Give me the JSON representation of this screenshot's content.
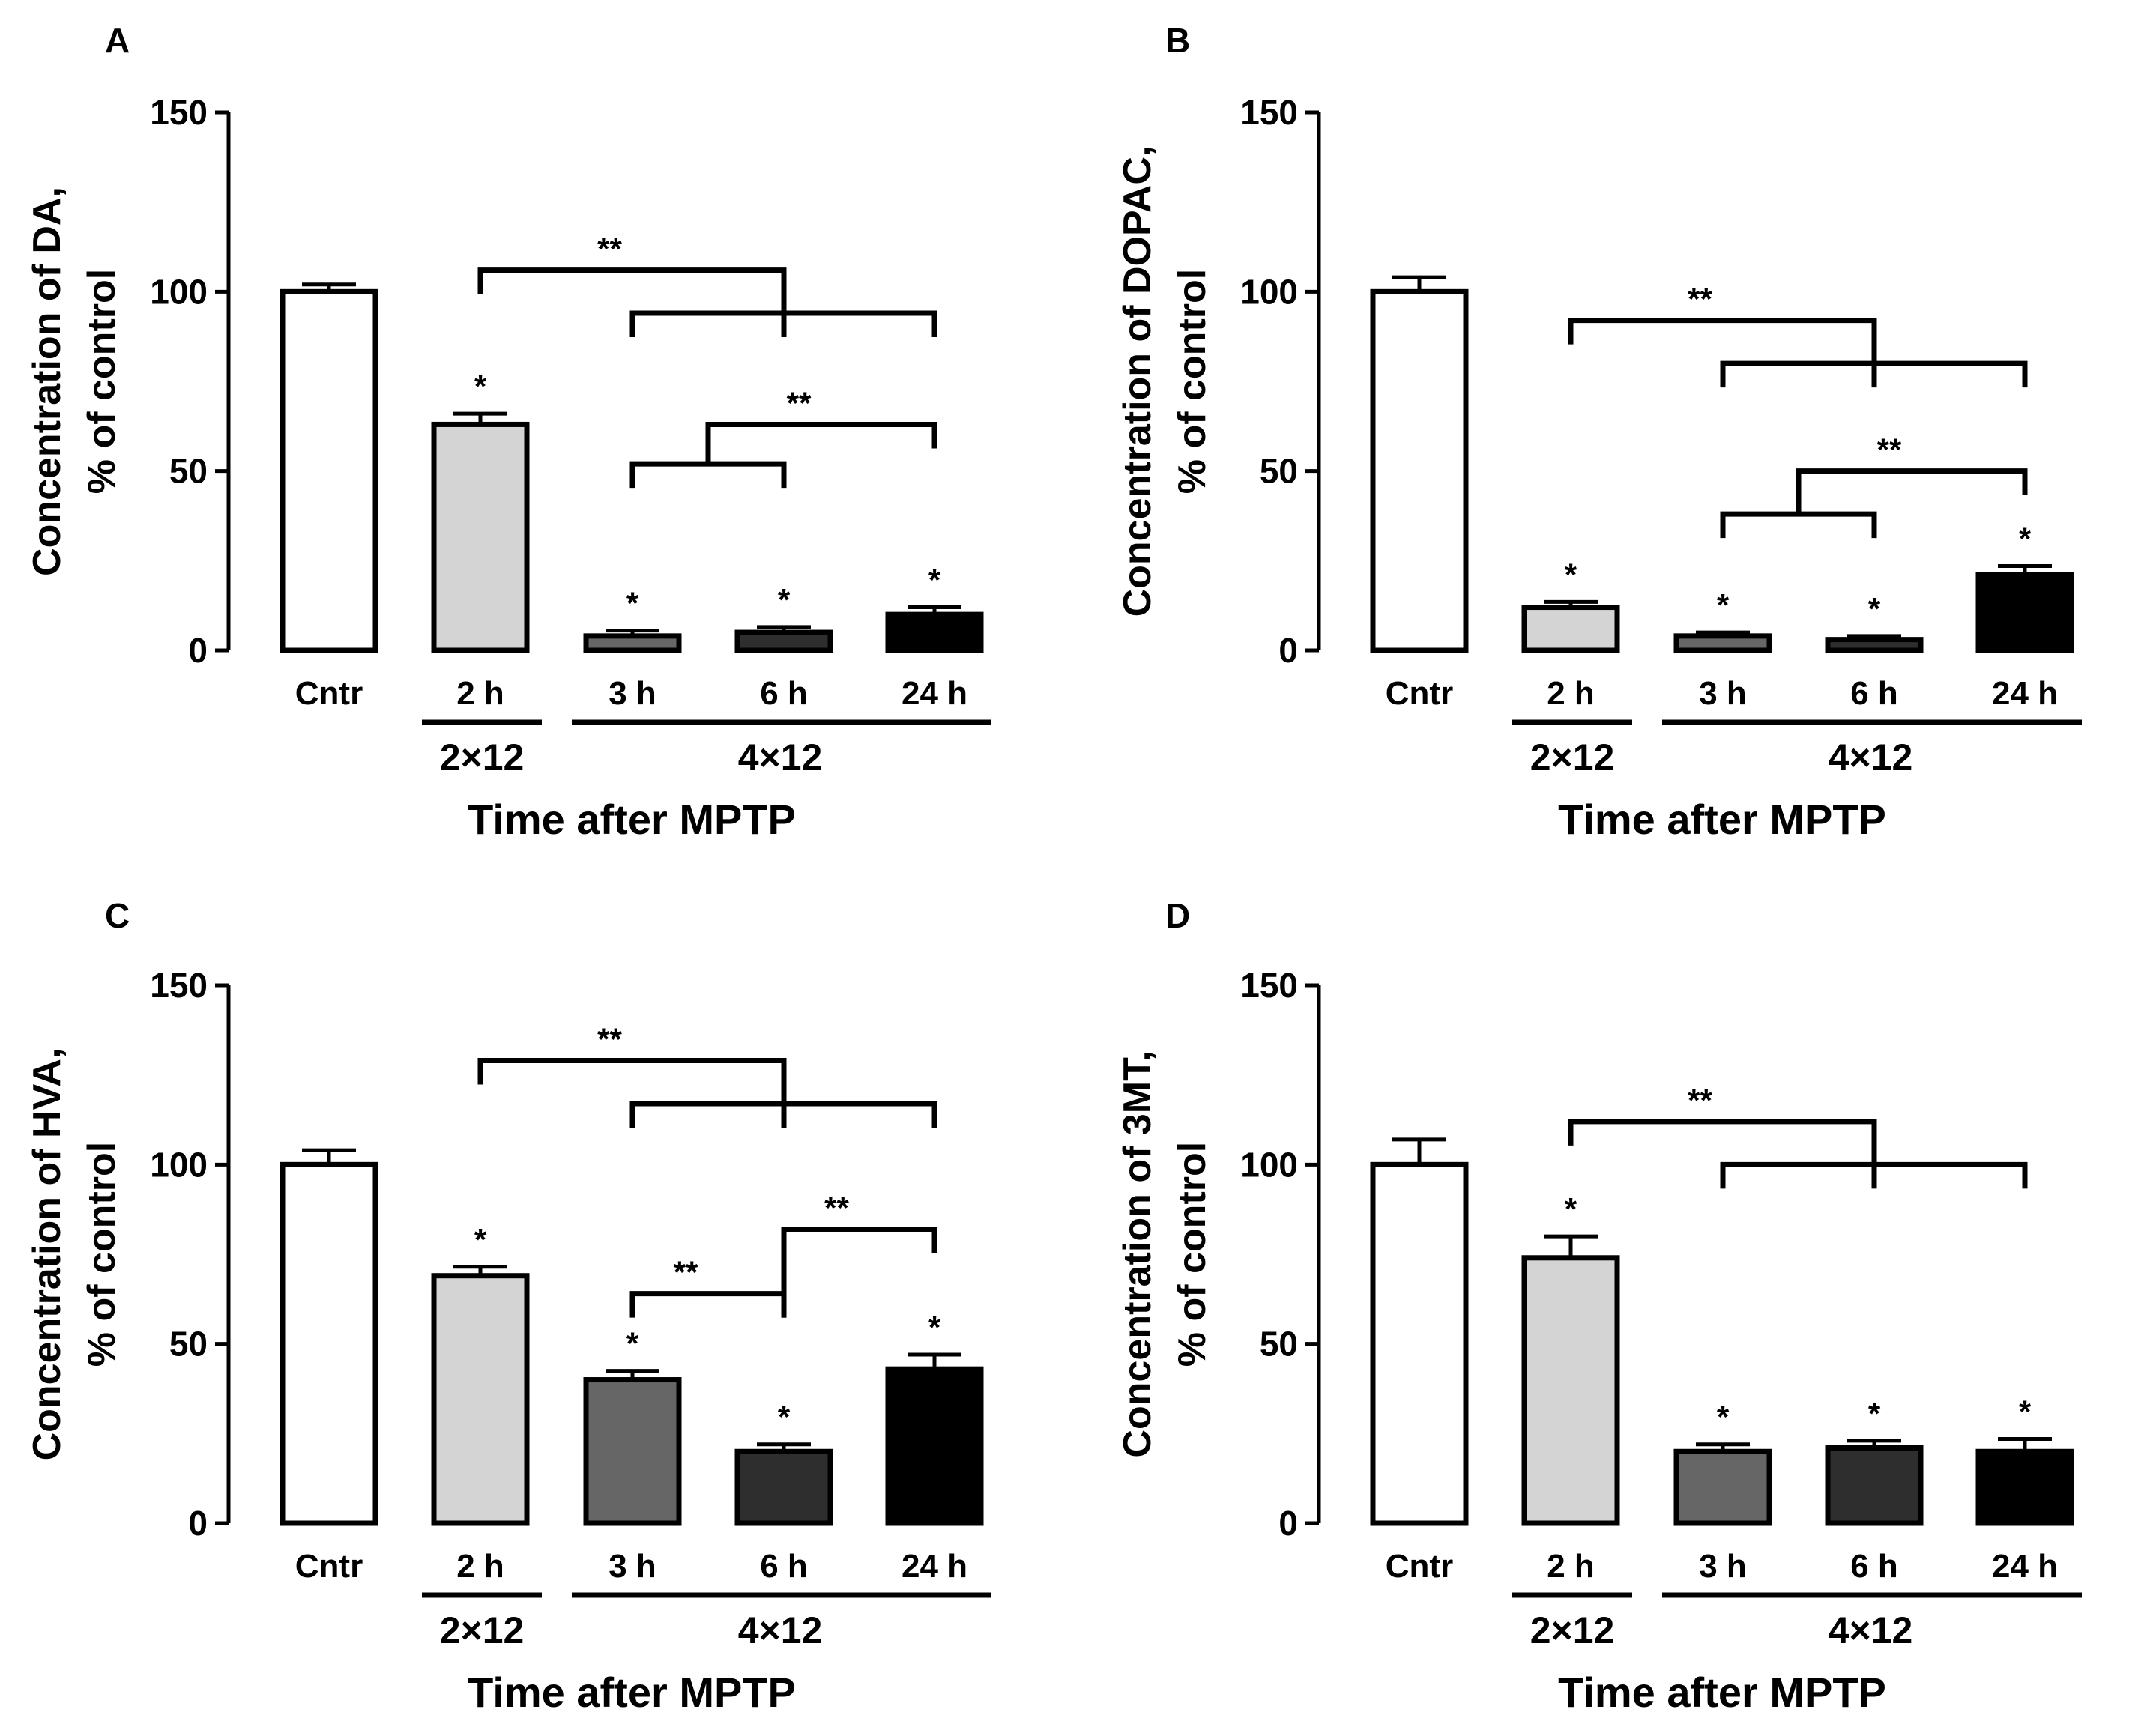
{
  "figure": {
    "x_axis_title": "Time after MPTP",
    "group_labels": [
      "2×12",
      "4×12"
    ],
    "significance_labels": {
      "single": "*",
      "double": "**"
    }
  },
  "colors": {
    "Cntr": "#ffffff",
    "2 h": "#d4d4d4",
    "3 h": "#666666",
    "6 h": "#2e2e2e",
    "24 h": "#000000"
  },
  "chart_data": [
    {
      "panel": "A",
      "type": "bar",
      "ylabel_line1": "Concentration of DA,",
      "ylabel_line2": "% of control",
      "categories": [
        "Cntr",
        "2 h",
        "3 h",
        "6 h",
        "24 h"
      ],
      "values": [
        100,
        63,
        4,
        5,
        10
      ],
      "errors": [
        2,
        3,
        1.5,
        1.5,
        2
      ],
      "stars": [
        "",
        "*",
        "*",
        "*",
        "*"
      ],
      "ylim": [
        0,
        150
      ],
      "yticks": [
        0,
        50,
        100,
        150
      ],
      "brackets": [
        {
          "from": 1,
          "to": 3,
          "y": 106,
          "label": "**"
        },
        {
          "from": 2,
          "to": 4,
          "y": 94,
          "label": ""
        },
        {
          "from": 2,
          "to": 3,
          "y": 52,
          "label": ""
        },
        {
          "from": 2.5,
          "to": 4,
          "y": 63,
          "label": "**"
        }
      ]
    },
    {
      "panel": "B",
      "type": "bar",
      "ylabel_line1": "Concentration of DOPAC,",
      "ylabel_line2": "% of control",
      "categories": [
        "Cntr",
        "2 h",
        "3 h",
        "6 h",
        "24 h"
      ],
      "values": [
        100,
        12,
        4,
        3,
        21
      ],
      "errors": [
        4,
        1.5,
        1,
        1,
        2.5
      ],
      "stars": [
        "",
        "*",
        "*",
        "*",
        "*"
      ],
      "ylim": [
        0,
        150
      ],
      "yticks": [
        0,
        50,
        100,
        150
      ],
      "brackets": [
        {
          "from": 1,
          "to": 3,
          "y": 92,
          "label": "**"
        },
        {
          "from": 2,
          "to": 4,
          "y": 80,
          "label": ""
        },
        {
          "from": 2,
          "to": 3,
          "y": 38,
          "label": ""
        },
        {
          "from": 2.5,
          "to": 4,
          "y": 50,
          "label": "**"
        }
      ]
    },
    {
      "panel": "C",
      "type": "bar",
      "ylabel_line1": "Concentration of HVA,",
      "ylabel_line2": "% of control",
      "categories": [
        "Cntr",
        "2 h",
        "3 h",
        "6 h",
        "24 h"
      ],
      "values": [
        100,
        69,
        40,
        20,
        43
      ],
      "errors": [
        4,
        2.5,
        2.5,
        2,
        4
      ],
      "stars": [
        "",
        "*",
        "*",
        "*",
        "*"
      ],
      "ylim": [
        0,
        150
      ],
      "yticks": [
        0,
        50,
        100,
        150
      ],
      "brackets": [
        {
          "from": 1,
          "to": 3,
          "y": 129,
          "label": "**"
        },
        {
          "from": 2,
          "to": 4,
          "y": 117,
          "label": ""
        },
        {
          "from": 2,
          "to": 3,
          "y": 64,
          "label": "**"
        },
        {
          "from": 3,
          "to": 4,
          "y": 82,
          "label": "**"
        }
      ]
    },
    {
      "panel": "D",
      "type": "bar",
      "ylabel_line1": "Concentration of 3MT,",
      "ylabel_line2": "% of control",
      "categories": [
        "Cntr",
        "2 h",
        "3 h",
        "6 h",
        "24 h"
      ],
      "values": [
        100,
        74,
        20,
        21,
        20
      ],
      "errors": [
        7,
        6,
        2,
        2,
        3.5
      ],
      "stars": [
        "",
        "*",
        "*",
        "*",
        "*"
      ],
      "ylim": [
        0,
        150
      ],
      "yticks": [
        0,
        50,
        100,
        150
      ],
      "brackets": [
        {
          "from": 1,
          "to": 3,
          "y": 112,
          "label": "**"
        },
        {
          "from": 2,
          "to": 4,
          "y": 100,
          "label": ""
        }
      ]
    }
  ]
}
